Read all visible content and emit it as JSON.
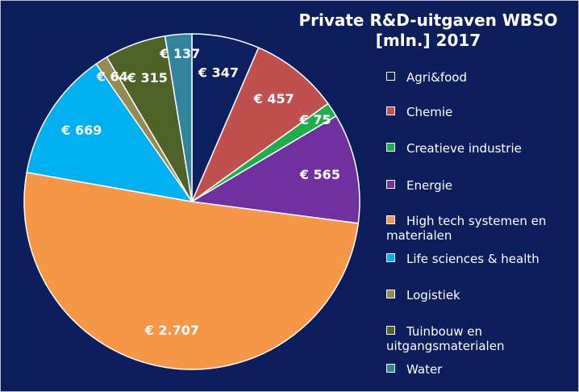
{
  "chart_data": {
    "type": "pie",
    "title": "Private R&D-uitgaven WBSO [mln.] 2017",
    "categories": [
      "Agri&food",
      "Chemie",
      "Creatieve industrie",
      "Energie",
      "High tech systemen en materialen",
      "Life sciences & health",
      "Logistiek",
      "Tuinbouw en uitgangsmaterialen",
      "Water"
    ],
    "values": [
      347,
      457,
      75,
      565,
      2707,
      669,
      64,
      315,
      137
    ],
    "value_labels": [
      "€ 347",
      "€ 457",
      "€ 75",
      "€ 565",
      "€ 2.707",
      "€ 669",
      "€ 64",
      "€ 315",
      "€ 137"
    ],
    "colors": [
      "#0c1f5e",
      "#c0504d",
      "#1fae4e",
      "#7030a0",
      "#f79646",
      "#00b0f0",
      "#948a54",
      "#4f6228",
      "#31849b"
    ],
    "legend": "right"
  }
}
